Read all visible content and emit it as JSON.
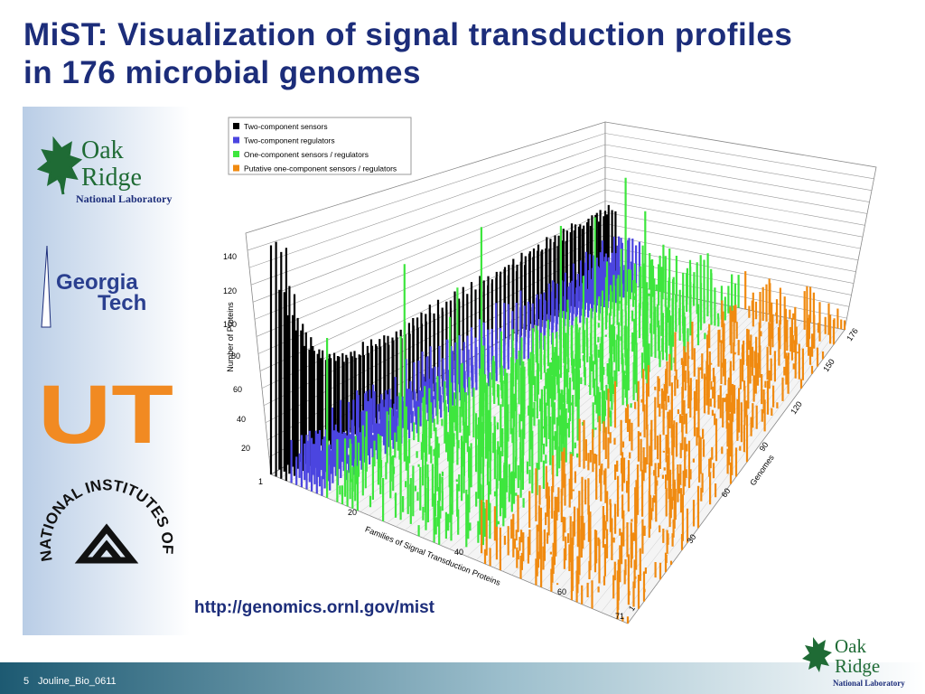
{
  "title": "MiST: Visualization of signal transduction profiles in 176 microbial genomes",
  "logos": {
    "ornl": {
      "word1": "Oak",
      "word2": "Ridge",
      "sub": "National Laboratory"
    },
    "georgia_tech": {
      "line1": "Georgia",
      "line2": "Tech"
    },
    "ut": "UT",
    "nih": "NATIONAL INSTITUTES OF HEALTH"
  },
  "figure": {
    "legend": [
      "Two-component sensors",
      "Two-component regulators",
      "One-component sensors / regulators",
      "Putative one-component sensors / regulators"
    ],
    "y_title": "Number of Proteins",
    "y_ticks": [
      "140",
      "120",
      "100",
      "80",
      "60",
      "40",
      "20",
      "1"
    ],
    "family_title": "Families of Signal Transduction Proteins",
    "family_ticks": [
      "20",
      "40",
      "60",
      "71"
    ],
    "genome_title": "Genomes",
    "genome_ticks": [
      "1",
      "30",
      "60",
      "90",
      "120",
      "150",
      "176"
    ]
  },
  "url": "http://genomics.ornl.gov/mist",
  "footer": {
    "page": "5",
    "label": "Jouline_Bio_0611"
  },
  "corner_logo": {
    "word1": "Oak",
    "word2": "Ridge",
    "sub": "National Laboratory"
  }
}
